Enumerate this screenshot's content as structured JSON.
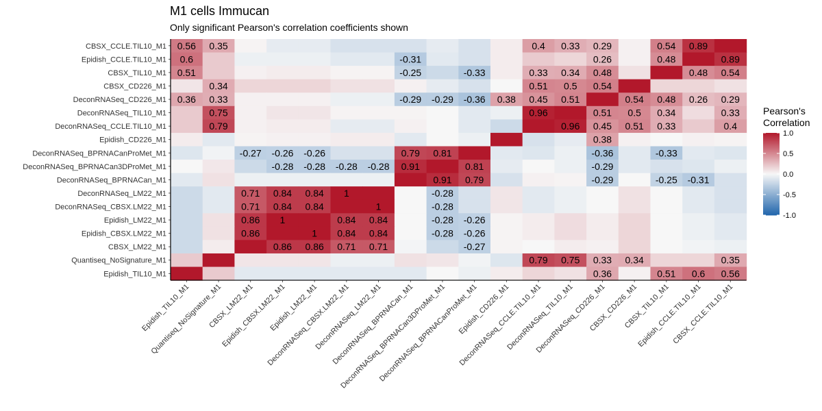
{
  "chart_data": {
    "type": "heatmap",
    "title": "M1 cells Immucan",
    "subtitle": "Only significant Pearson's correlation coefficients shown",
    "x_labels": [
      "Epidish_TIL10_M1",
      "Quantiseq_NoSignature_M1",
      "CBSX_LM22_M1",
      "Epidish_CBSX.LM22_M1",
      "Epidish_LM22_M1",
      "DeconRNASeq_CBSX.LM22_M1",
      "DeconRNASeq_LM22_M1",
      "DeconRNASeq_BPRNACan_M1",
      "DeconRNASeq_BPRNACan3DProMet_M1",
      "DeconRNASeq_BPRNACanProMet_M1",
      "Epidish_CD226_M1",
      "DeconRNASeq_CCLE.TIL10_M1",
      "DeconRNASeq_TIL10_M1",
      "DeconRNASeq_CD226_M1",
      "CBSX_CD226_M1",
      "CBSX_TIL10_M1",
      "Epidish_CCLE.TIL10_M1",
      "CBSX_CCLE.TIL10_M1"
    ],
    "y_labels": [
      "CBSX_CCLE.TIL10_M1",
      "Epidish_CCLE.TIL10_M1",
      "CBSX_TIL10_M1",
      "CBSX_CD226_M1",
      "DeconRNASeq_CD226_M1",
      "DeconRNASeq_TIL10_M1",
      "DeconRNASeq_CCLE.TIL10_M1",
      "Epidish_CD226_M1",
      "DeconRNASeq_BPRNACanProMet_M1",
      "DeconRNASeq_BPRNACan3DProMet_M1",
      "DeconRNASeq_BPRNACan_M1",
      "DeconRNASeq_LM22_M1",
      "DeconRNASeq_CBSX.LM22_M1",
      "Epidish_LM22_M1",
      "Epidish_CBSX.LM22_M1",
      "CBSX_LM22_M1",
      "Quantiseq_NoSignature_M1",
      "Epidish_TIL10_M1"
    ],
    "values": [
      [
        0.56,
        0.35,
        0.02,
        -0.08,
        -0.08,
        -0.15,
        -0.15,
        -0.15,
        -0.08,
        -0.15,
        0.05,
        0.4,
        0.33,
        0.29,
        0.03,
        0.54,
        0.89,
        1
      ],
      [
        0.6,
        0.2,
        -0.05,
        -0.05,
        -0.05,
        -0.1,
        -0.1,
        -0.31,
        -0.1,
        -0.15,
        0.05,
        0.2,
        0.15,
        0.26,
        0.03,
        0.48,
        1,
        0.89
      ],
      [
        0.51,
        0.2,
        0.03,
        0.05,
        0.05,
        0.02,
        0.02,
        -0.25,
        -0.2,
        -0.33,
        0.05,
        0.33,
        0.34,
        0.48,
        0.1,
        1,
        0.48,
        0.54
      ],
      [
        0.08,
        0.34,
        0.15,
        0.15,
        0.15,
        0.1,
        0.1,
        0.03,
        -0.08,
        -0.15,
        0.0,
        0.51,
        0.5,
        0.54,
        1,
        0.15,
        0.15,
        0.1
      ],
      [
        0.36,
        0.33,
        0.03,
        0.03,
        0.03,
        -0.05,
        -0.05,
        -0.29,
        -0.29,
        -0.36,
        0.38,
        0.45,
        0.51,
        1,
        0.54,
        0.48,
        0.26,
        0.29
      ],
      [
        0.2,
        0.75,
        0.03,
        0.08,
        0.08,
        0.02,
        0.02,
        0.02,
        0.0,
        -0.1,
        -0.05,
        0.96,
        1,
        0.51,
        0.5,
        0.34,
        0.12,
        0.33
      ],
      [
        0.2,
        0.79,
        0.03,
        0.05,
        0.05,
        -0.08,
        -0.08,
        0.03,
        0.0,
        -0.1,
        -0.2,
        1,
        0.96,
        0.45,
        0.51,
        0.33,
        0.2,
        0.4
      ],
      [
        0.05,
        -0.1,
        0.02,
        0.03,
        0.03,
        0.05,
        0.05,
        -0.1,
        0.0,
        -0.05,
        1,
        -0.15,
        -0.08,
        0.38,
        0.03,
        0.0,
        0.03,
        0.02
      ],
      [
        -0.12,
        -0.03,
        -0.27,
        -0.26,
        -0.26,
        -0.15,
        -0.15,
        0.79,
        0.81,
        1,
        -0.1,
        -0.12,
        -0.05,
        -0.36,
        -0.1,
        -0.33,
        -0.1,
        -0.12
      ],
      [
        0.0,
        0.07,
        -0.2,
        -0.28,
        -0.28,
        -0.28,
        -0.28,
        0.91,
        1,
        0.81,
        -0.08,
        0.0,
        -0.05,
        -0.29,
        -0.1,
        -0.15,
        -0.12,
        -0.05
      ],
      [
        -0.1,
        0.1,
        -0.05,
        -0.05,
        -0.05,
        -0.05,
        -0.05,
        1,
        0.91,
        0.79,
        -0.15,
        0.03,
        0.02,
        -0.29,
        0.0,
        -0.25,
        -0.31,
        -0.15
      ],
      [
        -0.2,
        -0.1,
        0.71,
        0.84,
        0.84,
        1,
        1,
        0.0,
        -0.28,
        -0.15,
        0.08,
        -0.1,
        -0.05,
        0.0,
        0.1,
        0.0,
        -0.1,
        -0.15
      ],
      [
        -0.2,
        -0.1,
        0.71,
        0.84,
        0.84,
        1,
        1,
        0.0,
        -0.28,
        -0.15,
        0.08,
        -0.1,
        -0.05,
        0.0,
        0.1,
        0.0,
        -0.1,
        -0.15
      ],
      [
        -0.2,
        0.1,
        0.86,
        1,
        1,
        0.84,
        0.84,
        0.0,
        -0.28,
        -0.26,
        0.02,
        0.05,
        0.12,
        0.05,
        0.15,
        0.0,
        -0.05,
        -0.1
      ],
      [
        -0.2,
        0.1,
        0.86,
        1,
        1,
        0.84,
        0.84,
        0.0,
        -0.28,
        -0.26,
        0.02,
        0.05,
        0.12,
        0.05,
        0.15,
        0.0,
        -0.05,
        -0.1
      ],
      [
        -0.2,
        0.05,
        1,
        0.86,
        0.86,
        0.71,
        0.71,
        -0.02,
        -0.2,
        -0.27,
        0.02,
        0.0,
        0.05,
        0.03,
        0.15,
        0.0,
        -0.03,
        -0.05
      ],
      [
        0.2,
        1,
        0.08,
        0.08,
        0.08,
        -0.05,
        -0.05,
        0.1,
        0.08,
        -0.03,
        -0.12,
        0.79,
        0.75,
        0.33,
        0.34,
        0.15,
        0.15,
        0.35
      ],
      [
        1,
        0.2,
        -0.1,
        -0.1,
        -0.1,
        -0.1,
        -0.1,
        -0.1,
        0.0,
        -0.05,
        0.05,
        0.15,
        0.1,
        0.36,
        0.03,
        0.51,
        0.6,
        0.56
      ]
    ],
    "labels": [
      [
        "0.56",
        "0.35",
        "",
        "",
        "",
        "",
        "",
        "",
        "",
        "",
        "",
        "0.4",
        "0.33",
        "0.29",
        "",
        "0.54",
        "0.89",
        ""
      ],
      [
        "0.6",
        "",
        "",
        "",
        "",
        "",
        "",
        "-0.31",
        "",
        "",
        "",
        "",
        "",
        "0.26",
        "",
        "0.48",
        "",
        "0.89"
      ],
      [
        "0.51",
        "",
        "",
        "",
        "",
        "",
        "",
        "-0.25",
        "",
        "-0.33",
        "",
        "0.33",
        "0.34",
        "0.48",
        "",
        "",
        "0.48",
        "0.54"
      ],
      [
        "",
        "0.34",
        "",
        "",
        "",
        "",
        "",
        "",
        "",
        "",
        "",
        "0.51",
        "0.5",
        "0.54",
        "",
        "",
        "",
        ""
      ],
      [
        "0.36",
        "0.33",
        "",
        "",
        "",
        "",
        "",
        "-0.29",
        "-0.29",
        "-0.36",
        "0.38",
        "0.45",
        "0.51",
        "",
        "0.54",
        "0.48",
        "0.26",
        "0.29"
      ],
      [
        "",
        "0.75",
        "",
        "",
        "",
        "",
        "",
        "",
        "",
        "",
        "",
        "0.96",
        "",
        "0.51",
        "0.5",
        "0.34",
        "",
        "0.33"
      ],
      [
        "",
        "0.79",
        "",
        "",
        "",
        "",
        "",
        "",
        "",
        "",
        "",
        "",
        "0.96",
        "0.45",
        "0.51",
        "0.33",
        "",
        "0.4"
      ],
      [
        "",
        "",
        "",
        "",
        "",
        "",
        "",
        "",
        "",
        "",
        "",
        "",
        "",
        "0.38",
        "",
        "",
        "",
        ""
      ],
      [
        "",
        "",
        "-0.27",
        "-0.26",
        "-0.26",
        "",
        "",
        "0.79",
        "0.81",
        "",
        "",
        "",
        "",
        "-0.36",
        "",
        "-0.33",
        "",
        ""
      ],
      [
        "",
        "",
        "",
        "-0.28",
        "-0.28",
        "-0.28",
        "-0.28",
        "0.91",
        "",
        "0.81",
        "",
        "",
        "",
        "-0.29",
        "",
        "",
        "",
        ""
      ],
      [
        "",
        "",
        "",
        "",
        "",
        "",
        "",
        "",
        "0.91",
        "0.79",
        "",
        "",
        "",
        "-0.29",
        "",
        "-0.25",
        "-0.31",
        ""
      ],
      [
        "",
        "",
        "0.71",
        "0.84",
        "0.84",
        "1",
        "",
        "",
        "-0.28",
        "",
        "",
        "",
        "",
        "",
        "",
        "",
        "",
        ""
      ],
      [
        "",
        "",
        "0.71",
        "0.84",
        "0.84",
        "",
        "1",
        "",
        "-0.28",
        "",
        "",
        "",
        "",
        "",
        "",
        "",
        "",
        ""
      ],
      [
        "",
        "",
        "0.86",
        "1",
        "",
        "0.84",
        "0.84",
        "",
        "-0.28",
        "-0.26",
        "",
        "",
        "",
        "",
        "",
        "",
        "",
        ""
      ],
      [
        "",
        "",
        "0.86",
        "",
        "1",
        "0.84",
        "0.84",
        "",
        "-0.28",
        "-0.26",
        "",
        "",
        "",
        "",
        "",
        "",
        "",
        ""
      ],
      [
        "",
        "",
        "",
        "0.86",
        "0.86",
        "0.71",
        "0.71",
        "",
        "",
        "-0.27",
        "",
        "",
        "",
        "",
        "",
        "",
        "",
        ""
      ],
      [
        "",
        "",
        "",
        "",
        "",
        "",
        "",
        "",
        "",
        "",
        "",
        "0.79",
        "0.75",
        "0.33",
        "0.34",
        "",
        "",
        "0.35"
      ],
      [
        "",
        "",
        "",
        "",
        "",
        "",
        "",
        "",
        "",
        "",
        "",
        "",
        "",
        "0.36",
        "",
        "0.51",
        "0.6",
        "0.56"
      ]
    ],
    "legend": {
      "title_line1": "Pearson's",
      "title_line2": "Correlation",
      "ticks": [
        "1.0",
        "0.5",
        "0.0",
        "-0.5",
        "-1.0"
      ],
      "tick_values": [
        1.0,
        0.5,
        0.0,
        -0.5,
        -1.0
      ],
      "placement": "right"
    },
    "colors": {
      "low": "#2166ac",
      "mid": "#f7f7f7",
      "high": "#b2182b"
    },
    "xlabel": "",
    "ylabel": "",
    "range": [
      -1,
      1
    ]
  }
}
